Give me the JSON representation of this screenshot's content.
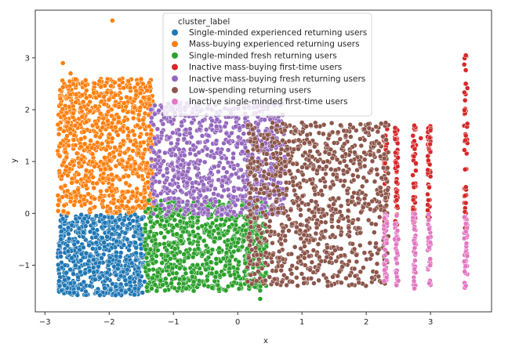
{
  "chart_data": {
    "type": "scatter",
    "title": "",
    "xlabel": "x",
    "ylabel": "y",
    "xlim": [
      -3.15,
      3.95
    ],
    "ylim": [
      -1.9,
      3.92
    ],
    "xticks": [
      -3,
      -2,
      -1,
      0,
      1,
      2,
      3
    ],
    "yticks": [
      -1,
      0,
      1,
      2,
      3
    ],
    "grid": false,
    "legend": {
      "title": "cluster_label",
      "placement": "top-center"
    },
    "series": [
      {
        "name": "Single-minded experienced returning users",
        "color": "#1f77b4",
        "approx_region": {
          "x": [
            -2.8,
            -1.45
          ],
          "y": [
            -1.58,
            -0.02
          ]
        },
        "sample_points": [
          [
            -2.75,
            -0.5
          ],
          [
            -2.6,
            -1.35
          ],
          [
            -2.3,
            -1.4
          ],
          [
            -1.9,
            -1.58
          ],
          [
            -1.6,
            -1.45
          ],
          [
            -2.2,
            -0.05
          ],
          [
            -1.5,
            -0.3
          ]
        ]
      },
      {
        "name": "Mass-buying experienced returning users",
        "color": "#ff7f0e",
        "approx_region": {
          "x": [
            -2.8,
            -1.3
          ],
          "y": [
            0.0,
            2.6
          ]
        },
        "sample_points": [
          [
            -1.95,
            3.72
          ],
          [
            -2.72,
            2.9
          ],
          [
            -2.6,
            2.7
          ],
          [
            -2.15,
            2.55
          ],
          [
            -1.7,
            2.55
          ],
          [
            -2.75,
            0.5
          ],
          [
            -1.4,
            0.6
          ]
        ]
      },
      {
        "name": "Single-minded fresh returning users",
        "color": "#2ca02c",
        "approx_region": {
          "x": [
            -1.45,
            0.45
          ],
          "y": [
            -1.5,
            0.25
          ]
        },
        "sample_points": [
          [
            0.35,
            -1.65
          ],
          [
            -0.8,
            -1.45
          ],
          [
            -1.2,
            -1.3
          ],
          [
            0.2,
            -1.3
          ],
          [
            -0.5,
            0.2
          ],
          [
            0.4,
            -0.2
          ]
        ]
      },
      {
        "name": "Inactive mass-buying first-time users",
        "color": "#d62728",
        "approx_region": {
          "x": [
            2.4,
            3.6
          ],
          "y": [
            -0.3,
            3.05
          ]
        },
        "sample_points": [
          [
            3.55,
            3.05
          ],
          [
            3.55,
            2.5
          ],
          [
            3.55,
            1.5
          ],
          [
            3.0,
            1.6
          ],
          [
            2.85,
            1.45
          ],
          [
            2.45,
            1.65
          ],
          [
            3.55,
            0.2
          ],
          [
            2.98,
            0.5
          ],
          [
            2.47,
            0.6
          ]
        ]
      },
      {
        "name": "Inactive mass-buying fresh returning users",
        "color": "#9467bd",
        "approx_region": {
          "x": [
            -1.35,
            0.75
          ],
          "y": [
            -0.05,
            2.15
          ]
        },
        "sample_points": [
          [
            -1.35,
            2.0
          ],
          [
            -0.9,
            2.1
          ],
          [
            -0.4,
            2.0
          ],
          [
            0.3,
            2.05
          ],
          [
            0.7,
            1.9
          ],
          [
            -1.0,
            0.4
          ],
          [
            0.5,
            0.3
          ]
        ]
      },
      {
        "name": "Low-spending returning users",
        "color": "#8c564b",
        "approx_region": {
          "x": [
            0.15,
            2.35
          ],
          "y": [
            -1.4,
            1.75
          ]
        },
        "sample_points": [
          [
            1.0,
            1.75
          ],
          [
            1.6,
            1.7
          ],
          [
            2.2,
            1.35
          ],
          [
            2.3,
            0.3
          ],
          [
            1.4,
            -1.4
          ],
          [
            0.3,
            -0.8
          ],
          [
            0.2,
            0.3
          ]
        ]
      },
      {
        "name": "Inactive single-minded first-time users",
        "color": "#e377c2",
        "approx_region": {
          "x": [
            2.4,
            3.6
          ],
          "y": [
            -1.45,
            0.0
          ]
        },
        "sample_points": [
          [
            2.5,
            -1.3
          ],
          [
            2.75,
            -1.45
          ],
          [
            2.98,
            -1.35
          ],
          [
            3.55,
            -1.4
          ],
          [
            3.55,
            -0.2
          ],
          [
            2.5,
            -0.5
          ]
        ]
      }
    ]
  }
}
